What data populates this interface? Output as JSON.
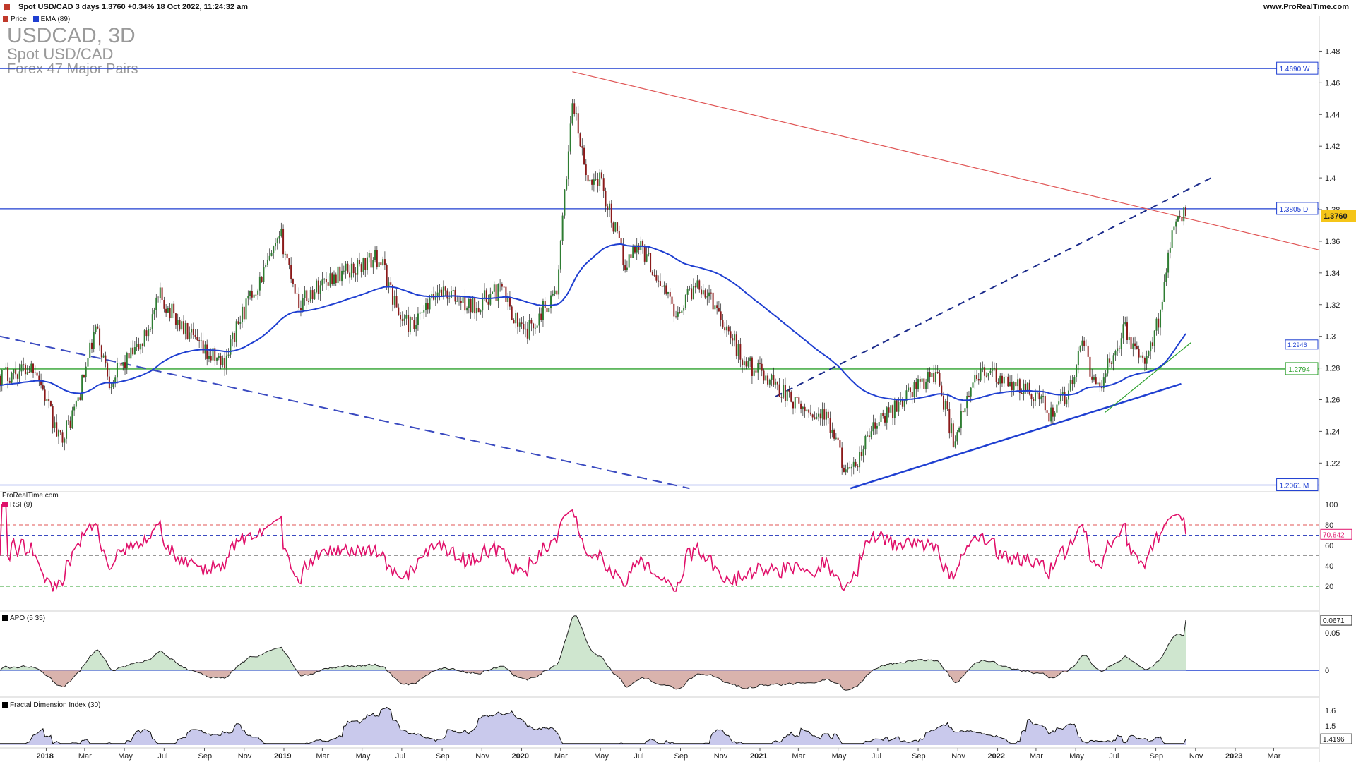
{
  "header": {
    "instrument_line": "Spot USD/CAD 3 days 1.3760 +0.34% 18 Oct 2022, 11:24:32 am",
    "site": "www.ProRealTime.com",
    "credit": "ProRealTime.com"
  },
  "legend": [
    {
      "label": "Price",
      "color": "#c0392b",
      "icon": "candle-icon"
    },
    {
      "label": "EMA (89)",
      "color": "#1f3fd1",
      "icon": "line-icon"
    }
  ],
  "watermark": {
    "symbol": "USDCAD, 3D",
    "name": "Spot USD/CAD",
    "group": "Forex 47 Major Pairs"
  },
  "colors": {
    "up": "#2e7d32",
    "down": "#8b1a1a",
    "ema": "#1f3fd1",
    "level_line": "#1f3fd1",
    "support_line": "#2ca02c",
    "resistance_trend": "#e05555",
    "rsi": "#e0106a",
    "current_price_bg": "#f5c518"
  },
  "chart_data": {
    "type": "candlestick",
    "title": "USDCAD, 3D",
    "subtitle": "Spot USD/CAD",
    "y_ticks": [
      "1.22",
      "1.24",
      "1.26",
      "1.28",
      "1.3",
      "1.32",
      "1.34",
      "1.36",
      "1.38",
      "1.4",
      "1.42",
      "1.44",
      "1.46",
      "1.48"
    ],
    "ylim": [
      1.205,
      1.49
    ],
    "x_ticks": [
      "2018",
      "Mar",
      "May",
      "Jul",
      "Sep",
      "Nov",
      "2019",
      "Mar",
      "May",
      "Jul",
      "Sep",
      "Nov",
      "2020",
      "Mar",
      "May",
      "Jul",
      "Sep",
      "Nov",
      "2021",
      "Mar",
      "May",
      "Jul",
      "Sep",
      "Nov",
      "2022",
      "Mar",
      "May",
      "Jul",
      "Sep",
      "Nov",
      "2023",
      "Mar"
    ],
    "x_tick_dates": [
      "2018-01-01",
      "2018-03-01",
      "2018-05-01",
      "2018-07-01",
      "2018-09-01",
      "2018-11-01",
      "2019-01-01",
      "2019-03-01",
      "2019-05-01",
      "2019-07-01",
      "2019-09-01",
      "2019-11-01",
      "2020-01-01",
      "2020-03-01",
      "2020-05-01",
      "2020-07-01",
      "2020-09-01",
      "2020-11-01",
      "2021-01-01",
      "2021-03-01",
      "2021-05-01",
      "2021-07-01",
      "2021-09-01",
      "2021-11-01",
      "2022-01-01",
      "2022-03-01",
      "2022-05-01",
      "2022-07-01",
      "2022-09-01",
      "2022-11-01",
      "2023-01-01",
      "2023-03-01"
    ],
    "xlim": [
      "2017-10-22",
      "2023-05-10"
    ],
    "price_anchors": [
      {
        "d": "2017-10-22",
        "v": 1.275
      },
      {
        "d": "2017-11-20",
        "v": 1.278
      },
      {
        "d": "2017-12-15",
        "v": 1.282
      },
      {
        "d": "2017-12-30",
        "v": 1.262
      },
      {
        "d": "2018-01-20",
        "v": 1.235
      },
      {
        "d": "2018-02-05",
        "v": 1.245
      },
      {
        "d": "2018-02-20",
        "v": 1.262
      },
      {
        "d": "2018-03-18",
        "v": 1.305
      },
      {
        "d": "2018-04-08",
        "v": 1.272
      },
      {
        "d": "2018-05-05",
        "v": 1.285
      },
      {
        "d": "2018-05-28",
        "v": 1.295
      },
      {
        "d": "2018-06-25",
        "v": 1.325
      },
      {
        "d": "2018-07-28",
        "v": 1.306
      },
      {
        "d": "2018-08-30",
        "v": 1.29
      },
      {
        "d": "2018-09-30",
        "v": 1.283
      },
      {
        "d": "2018-10-30",
        "v": 1.315
      },
      {
        "d": "2018-12-28",
        "v": 1.362
      },
      {
        "d": "2019-01-25",
        "v": 1.32
      },
      {
        "d": "2019-03-05",
        "v": 1.336
      },
      {
        "d": "2019-04-20",
        "v": 1.343
      },
      {
        "d": "2019-05-28",
        "v": 1.35
      },
      {
        "d": "2019-06-28",
        "v": 1.312
      },
      {
        "d": "2019-07-20",
        "v": 1.305
      },
      {
        "d": "2019-08-28",
        "v": 1.33
      },
      {
        "d": "2019-10-15",
        "v": 1.318
      },
      {
        "d": "2019-11-30",
        "v": 1.33
      },
      {
        "d": "2020-01-05",
        "v": 1.3
      },
      {
        "d": "2020-02-25",
        "v": 1.33
      },
      {
        "d": "2020-03-19",
        "v": 1.45
      },
      {
        "d": "2020-04-10",
        "v": 1.398
      },
      {
        "d": "2020-04-30",
        "v": 1.4
      },
      {
        "d": "2020-06-08",
        "v": 1.345
      },
      {
        "d": "2020-06-28",
        "v": 1.36
      },
      {
        "d": "2020-08-25",
        "v": 1.315
      },
      {
        "d": "2020-09-28",
        "v": 1.335
      },
      {
        "d": "2020-10-25",
        "v": 1.32
      },
      {
        "d": "2020-12-05",
        "v": 1.285
      },
      {
        "d": "2021-01-20",
        "v": 1.272
      },
      {
        "d": "2021-03-01",
        "v": 1.255
      },
      {
        "d": "2021-04-10",
        "v": 1.25
      },
      {
        "d": "2021-05-20",
        "v": 1.21
      },
      {
        "d": "2021-06-20",
        "v": 1.24
      },
      {
        "d": "2021-08-20",
        "v": 1.265
      },
      {
        "d": "2021-09-28",
        "v": 1.278
      },
      {
        "d": "2021-10-25",
        "v": 1.235
      },
      {
        "d": "2021-12-05",
        "v": 1.28
      },
      {
        "d": "2022-01-10",
        "v": 1.27
      },
      {
        "d": "2022-02-25",
        "v": 1.265
      },
      {
        "d": "2022-03-25",
        "v": 1.25
      },
      {
        "d": "2022-04-20",
        "v": 1.265
      },
      {
        "d": "2022-05-12",
        "v": 1.295
      },
      {
        "d": "2022-06-03",
        "v": 1.265
      },
      {
        "d": "2022-07-14",
        "v": 1.305
      },
      {
        "d": "2022-08-15",
        "v": 1.28
      },
      {
        "d": "2022-09-05",
        "v": 1.31
      },
      {
        "d": "2022-09-28",
        "v": 1.375
      },
      {
        "d": "2022-10-18",
        "v": 1.376
      }
    ],
    "ema_period": 89,
    "ema_last": 1.2946,
    "current_price": 1.376,
    "levels": [
      {
        "value": 1.469,
        "label": "1.4690 W",
        "color": "#1f3fd1"
      },
      {
        "value": 1.3805,
        "label": "1.3805 D",
        "color": "#1f3fd1"
      },
      {
        "value": 1.2794,
        "label": "1.2794",
        "color": "#2ca02c"
      },
      {
        "value": 1.2061,
        "label": "1.2061 M",
        "color": "#1f3fd1"
      }
    ],
    "trendlines": [
      {
        "name": "red-resistance",
        "from": [
          "2020-03-19",
          1.467
        ],
        "to": [
          "2023-05-10",
          1.3545
        ],
        "color": "#e05555",
        "dashed": false
      },
      {
        "name": "blue-dashed-channel",
        "from": [
          "2021-01-25",
          1.262
        ],
        "to": [
          "2022-11-25",
          1.4
        ],
        "color": "#1a2a8a",
        "dashed": true
      },
      {
        "name": "blue-dashed-low",
        "from": [
          "2017-10-22",
          1.3
        ],
        "to": [
          "2020-09-15",
          1.204
        ],
        "color": "#3a4ac0",
        "dashed": true
      },
      {
        "name": "blue-support",
        "from": [
          "2021-05-20",
          1.204
        ],
        "to": [
          "2022-10-10",
          1.27
        ],
        "color": "#1f3fd1",
        "dashed": false
      },
      {
        "name": "green-support",
        "from": [
          "2022-06-15",
          1.252
        ],
        "to": [
          "2022-10-25",
          1.296
        ],
        "color": "#2ca02c",
        "dashed": false
      }
    ],
    "rsi": {
      "title": "RSI (9)",
      "period": 9,
      "ticks": [
        "100",
        "80",
        "60",
        "40",
        "20"
      ],
      "ylim": [
        0,
        100
      ],
      "bands": [
        80,
        70,
        50,
        30,
        20
      ],
      "last": 70.842,
      "last_label": "70.842"
    },
    "apo": {
      "title": "APO (5 35)",
      "ticks": [
        "0.05",
        "0"
      ],
      "ylim": [
        -0.03,
        0.07
      ],
      "last": 0.0671,
      "last_label": "0.0671"
    },
    "fdi": {
      "title": "Fractal Dimension Index (30)",
      "ticks": [
        "1.6",
        "1.5"
      ],
      "ylim": [
        1.38,
        1.64
      ],
      "last": 1.4196,
      "last_label": "1.4196"
    }
  }
}
